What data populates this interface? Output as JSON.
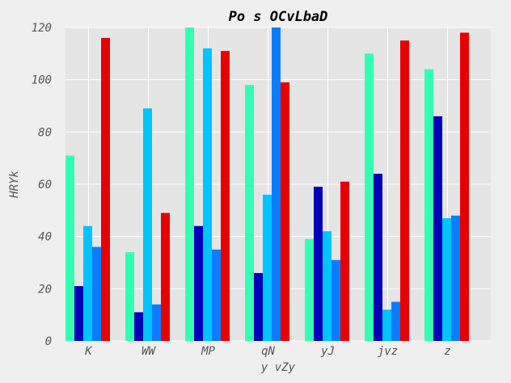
{
  "chart_data": {
    "type": "bar",
    "title": "Po s OCvLbaD",
    "xlabel": "y vZy",
    "ylabel": "HRYk",
    "categories": [
      "K",
      "WW",
      "MP",
      "qN",
      "yJ",
      "jvz",
      "z"
    ],
    "ylim": [
      0,
      120
    ],
    "yticks": [
      0,
      20,
      40,
      60,
      80,
      100,
      120
    ],
    "grid": true,
    "series": [
      {
        "color": "#33ffb3",
        "values": [
          71,
          34,
          120,
          98,
          39,
          110,
          104
        ]
      },
      {
        "color": "#0000bb",
        "values": [
          21,
          11,
          44,
          26,
          59,
          64,
          86
        ]
      },
      {
        "color": "#00c3ff",
        "values": [
          44,
          89,
          112,
          56,
          42,
          12,
          47
        ]
      },
      {
        "color": "#0a7dff",
        "values": [
          36,
          14,
          35,
          120,
          31,
          15,
          48
        ]
      },
      {
        "color": "#e80000",
        "values": [
          116,
          49,
          111,
          99,
          61,
          115,
          118
        ]
      }
    ]
  }
}
